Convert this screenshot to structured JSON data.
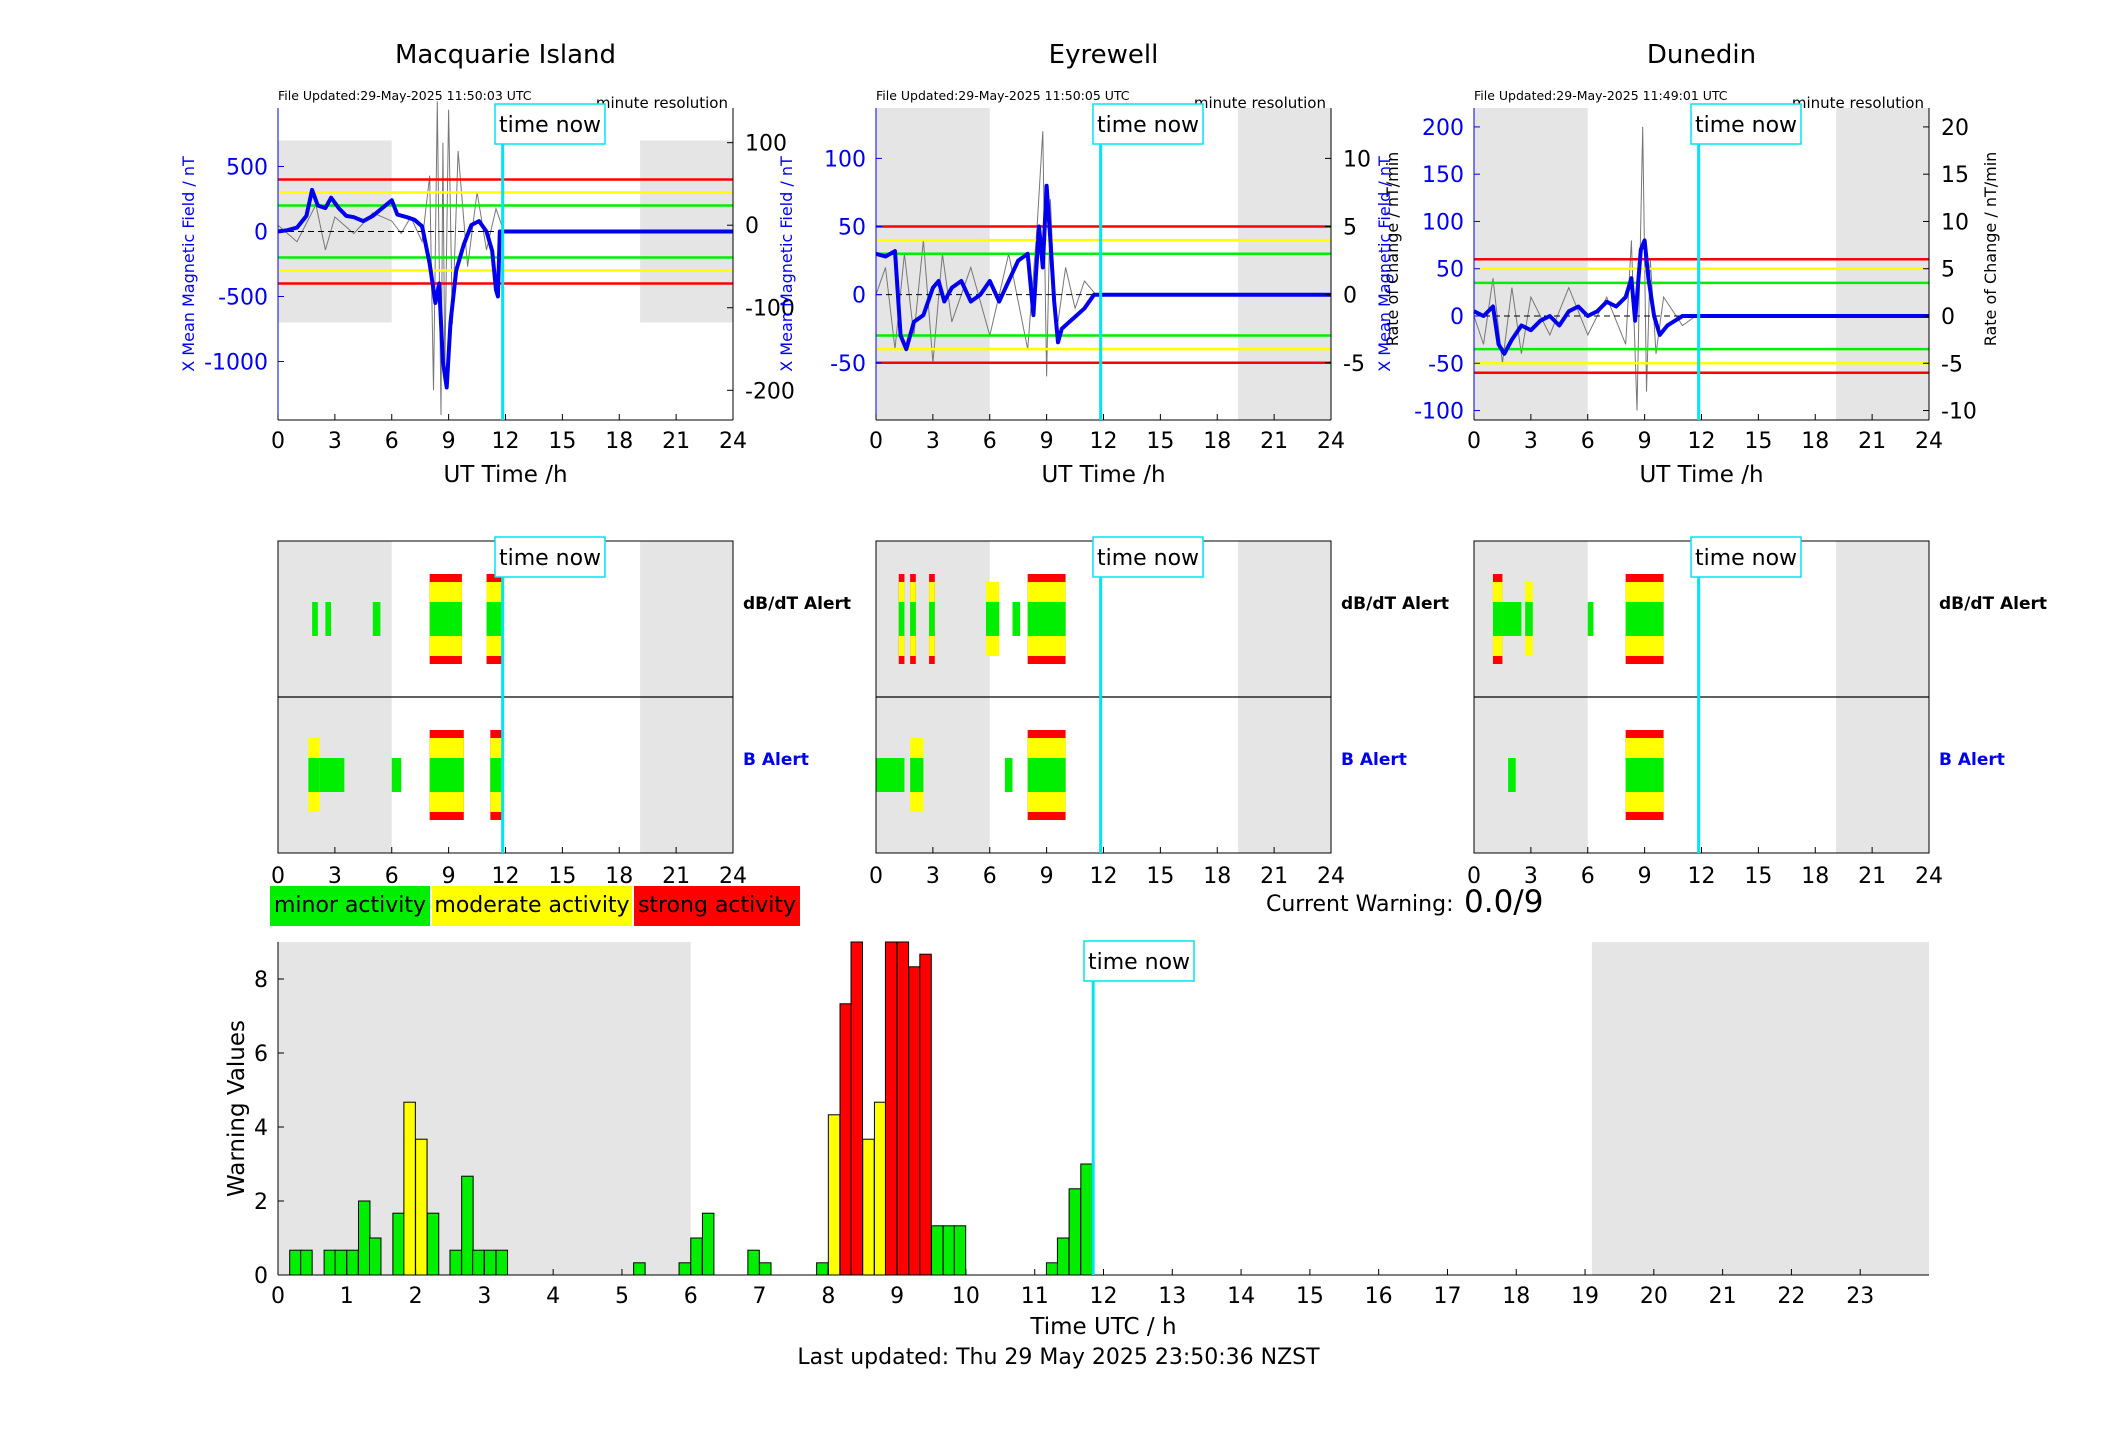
{
  "colors": {
    "minor": "#00ee00",
    "moderate": "#ffff00",
    "strong": "#ff0000",
    "field": "#0000ee",
    "now_line": "#00e5ee",
    "night": "#e5e5e5"
  },
  "now_label": "time now",
  "now_hour": 11.85,
  "file_resolution": "minute resolution",
  "alert_labels": {
    "dbdt": "dB/dT Alert",
    "b": "B Alert"
  },
  "legend": {
    "minor": "minor activity",
    "moderate": "moderate activity",
    "strong": "strong activity"
  },
  "current_warning": {
    "label": "Current Warning:",
    "value": "0.0/9"
  },
  "footer": "Last updated: Thu 29 May 2025 23:50:36 NZST",
  "chart_data": [
    {
      "type": "line",
      "title": "Macquarie Island",
      "file_updated": "File Updated:29-May-2025 11:50:03 UTC",
      "xlabel": "UT Time /h",
      "ylabel_left": "X Mean Magnetic Field / nT",
      "ylabel_right": "",
      "xlim": [
        0,
        24
      ],
      "xticks": [
        0,
        3,
        6,
        9,
        12,
        15,
        18,
        21,
        24
      ],
      "ylim_left": [
        -1450,
        950
      ],
      "yticks_left": [
        500,
        0,
        -500,
        -1000
      ],
      "ylim_right": [
        -236,
        142
      ],
      "yticks_right": [
        100,
        0,
        -100,
        -200
      ],
      "night": [
        [
          0,
          6,
          -700,
          700
        ],
        [
          19.1,
          24,
          -700,
          700
        ]
      ],
      "thresholds": {
        "green": 200,
        "yellow": 300,
        "red": 400
      },
      "field": [
        [
          0,
          0
        ],
        [
          0.5,
          10
        ],
        [
          1,
          30
        ],
        [
          1.5,
          120
        ],
        [
          1.8,
          320
        ],
        [
          2.1,
          200
        ],
        [
          2.5,
          180
        ],
        [
          2.8,
          260
        ],
        [
          3.2,
          180
        ],
        [
          3.6,
          120
        ],
        [
          4,
          110
        ],
        [
          4.5,
          80
        ],
        [
          5,
          120
        ],
        [
          5.5,
          180
        ],
        [
          6,
          240
        ],
        [
          6.3,
          130
        ],
        [
          6.8,
          110
        ],
        [
          7.2,
          90
        ],
        [
          7.6,
          40
        ],
        [
          8.0,
          -250
        ],
        [
          8.3,
          -550
        ],
        [
          8.5,
          -400
        ],
        [
          8.7,
          -1000
        ],
        [
          8.9,
          -1200
        ],
        [
          9.1,
          -700
        ],
        [
          9.4,
          -300
        ],
        [
          9.8,
          -100
        ],
        [
          10.2,
          50
        ],
        [
          10.6,
          80
        ],
        [
          11.0,
          0
        ],
        [
          11.3,
          -150
        ],
        [
          11.5,
          -450
        ],
        [
          11.6,
          -500
        ],
        [
          11.7,
          0
        ],
        [
          12,
          0
        ],
        [
          24,
          0
        ]
      ],
      "rate": [
        [
          0,
          0
        ],
        [
          1,
          -20
        ],
        [
          2,
          25
        ],
        [
          2.5,
          -30
        ],
        [
          3,
          10
        ],
        [
          4,
          -10
        ],
        [
          5,
          15
        ],
        [
          6,
          5
        ],
        [
          6.5,
          -10
        ],
        [
          7,
          10
        ],
        [
          7.6,
          -20
        ],
        [
          8,
          60
        ],
        [
          8.2,
          -200
        ],
        [
          8.4,
          150
        ],
        [
          8.6,
          -230
        ],
        [
          8.7,
          100
        ],
        [
          8.8,
          -180
        ],
        [
          9,
          140
        ],
        [
          9.2,
          -120
        ],
        [
          9.5,
          90
        ],
        [
          10,
          -50
        ],
        [
          10.5,
          40
        ],
        [
          11,
          -30
        ],
        [
          11.5,
          20
        ],
        [
          11.8,
          0
        ]
      ]
    },
    {
      "type": "line",
      "title": "Eyrewell",
      "file_updated": "File Updated:29-May-2025 11:50:05 UTC",
      "xlabel": "UT Time /h",
      "ylabel_left": "X Mean Magnetic Field / nT",
      "ylabel_right": "Rate of Change / nT/min",
      "xlim": [
        0,
        24
      ],
      "xticks": [
        0,
        3,
        6,
        9,
        12,
        15,
        18,
        21,
        24
      ],
      "ylim_left": [
        -92,
        137
      ],
      "yticks_left": [
        100,
        50,
        0,
        -50
      ],
      "ylim_right": [
        -9.2,
        13.7
      ],
      "yticks_right": [
        10,
        5,
        0,
        -5
      ],
      "night": [
        [
          0,
          6,
          -92,
          137
        ],
        [
          19.1,
          24,
          -92,
          137
        ]
      ],
      "thresholds": {
        "green": 30,
        "yellow": 40,
        "red": 50
      },
      "field": [
        [
          0,
          30
        ],
        [
          0.5,
          28
        ],
        [
          1,
          32
        ],
        [
          1.3,
          -30
        ],
        [
          1.6,
          -40
        ],
        [
          2,
          -20
        ],
        [
          2.5,
          -15
        ],
        [
          3,
          5
        ],
        [
          3.3,
          10
        ],
        [
          3.6,
          -5
        ],
        [
          4,
          5
        ],
        [
          4.5,
          10
        ],
        [
          5,
          -5
        ],
        [
          5.5,
          0
        ],
        [
          6,
          10
        ],
        [
          6.5,
          -5
        ],
        [
          7,
          10
        ],
        [
          7.5,
          25
        ],
        [
          8,
          30
        ],
        [
          8.3,
          -15
        ],
        [
          8.6,
          50
        ],
        [
          8.8,
          20
        ],
        [
          9,
          80
        ],
        [
          9.2,
          40
        ],
        [
          9.4,
          -5
        ],
        [
          9.6,
          -35
        ],
        [
          9.8,
          -25
        ],
        [
          10.2,
          -20
        ],
        [
          10.6,
          -15
        ],
        [
          11,
          -10
        ],
        [
          11.5,
          0
        ],
        [
          12,
          0
        ],
        [
          24,
          0
        ]
      ],
      "rate": [
        [
          0,
          0
        ],
        [
          0.5,
          2
        ],
        [
          1,
          -4
        ],
        [
          1.5,
          3
        ],
        [
          2,
          -3
        ],
        [
          2.5,
          4
        ],
        [
          3,
          -5
        ],
        [
          3.5,
          3
        ],
        [
          4,
          -2
        ],
        [
          5,
          2
        ],
        [
          6,
          -3
        ],
        [
          7,
          3
        ],
        [
          8,
          -4
        ],
        [
          8.5,
          5
        ],
        [
          8.8,
          12
        ],
        [
          9,
          -6
        ],
        [
          9.2,
          7
        ],
        [
          9.5,
          -3
        ],
        [
          10,
          2
        ],
        [
          10.5,
          -1
        ],
        [
          11,
          1
        ],
        [
          11.6,
          0
        ]
      ]
    },
    {
      "type": "line",
      "title": "Dunedin",
      "file_updated": "File Updated:29-May-2025 11:49:01 UTC",
      "xlabel": "UT Time /h",
      "ylabel_left": "X Mean Magnetic Field / nT",
      "ylabel_right": "Rate of Change / nT/min",
      "xlim": [
        0,
        24
      ],
      "xticks": [
        0,
        3,
        6,
        9,
        12,
        15,
        18,
        21,
        24
      ],
      "ylim_left": [
        -110,
        220
      ],
      "yticks_left": [
        200,
        150,
        100,
        50,
        0,
        -50,
        -100
      ],
      "ylim_right": [
        -11,
        22
      ],
      "yticks_right": [
        20,
        15,
        10,
        5,
        0,
        -5,
        -10
      ],
      "night": [
        [
          0,
          6,
          -110,
          220
        ],
        [
          19.1,
          24,
          -110,
          220
        ]
      ],
      "thresholds": {
        "green": 35,
        "yellow": 50,
        "red": 60
      },
      "field": [
        [
          0,
          5
        ],
        [
          0.5,
          0
        ],
        [
          1,
          10
        ],
        [
          1.3,
          -30
        ],
        [
          1.6,
          -40
        ],
        [
          2,
          -25
        ],
        [
          2.5,
          -10
        ],
        [
          3,
          -15
        ],
        [
          3.5,
          -5
        ],
        [
          4,
          0
        ],
        [
          4.5,
          -10
        ],
        [
          5,
          5
        ],
        [
          5.5,
          10
        ],
        [
          6,
          0
        ],
        [
          6.5,
          5
        ],
        [
          7,
          15
        ],
        [
          7.5,
          10
        ],
        [
          8,
          20
        ],
        [
          8.3,
          40
        ],
        [
          8.5,
          -5
        ],
        [
          8.8,
          70
        ],
        [
          9,
          80
        ],
        [
          9.2,
          40
        ],
        [
          9.5,
          0
        ],
        [
          9.8,
          -20
        ],
        [
          10.2,
          -10
        ],
        [
          10.6,
          -5
        ],
        [
          11,
          0
        ],
        [
          11.8,
          0
        ],
        [
          12,
          0
        ],
        [
          24,
          0
        ]
      ],
      "rate": [
        [
          0,
          0
        ],
        [
          0.5,
          -3
        ],
        [
          1,
          4
        ],
        [
          1.5,
          -5
        ],
        [
          2,
          3
        ],
        [
          2.5,
          -4
        ],
        [
          3,
          2
        ],
        [
          4,
          -2
        ],
        [
          5,
          3
        ],
        [
          6,
          -2
        ],
        [
          7,
          2
        ],
        [
          8,
          -3
        ],
        [
          8.3,
          8
        ],
        [
          8.6,
          -10
        ],
        [
          8.9,
          20
        ],
        [
          9.1,
          -8
        ],
        [
          9.3,
          6
        ],
        [
          9.6,
          -4
        ],
        [
          10,
          2
        ],
        [
          11,
          -1
        ],
        [
          11.7,
          0
        ]
      ]
    },
    {
      "type": "bar",
      "title": "",
      "xlabel": "Time UTC / h",
      "ylabel": "Warning Values",
      "xlim": [
        0,
        24
      ],
      "ylim": [
        0,
        9
      ],
      "xticks": [
        0,
        1,
        2,
        3,
        4,
        5,
        6,
        7,
        8,
        9,
        10,
        11,
        12,
        13,
        14,
        15,
        16,
        17,
        18,
        19,
        20,
        21,
        22,
        23
      ],
      "yticks": [
        0,
        2,
        4,
        6,
        8
      ],
      "night": [
        [
          0,
          6
        ],
        [
          19.1,
          24
        ]
      ],
      "bar_width_h": 0.1667,
      "bars": [
        [
          0.17,
          0.67,
          "g"
        ],
        [
          0.33,
          0.67,
          "g"
        ],
        [
          0.67,
          0.67,
          "g"
        ],
        [
          0.83,
          0.67,
          "g"
        ],
        [
          1.0,
          0.67,
          "g"
        ],
        [
          1.17,
          2.0,
          "g"
        ],
        [
          1.33,
          1.0,
          "g"
        ],
        [
          1.67,
          1.67,
          "g"
        ],
        [
          1.83,
          4.67,
          "y"
        ],
        [
          2.0,
          3.67,
          "y"
        ],
        [
          2.17,
          1.67,
          "g"
        ],
        [
          2.5,
          0.67,
          "g"
        ],
        [
          2.67,
          2.67,
          "g"
        ],
        [
          2.83,
          0.67,
          "g"
        ],
        [
          3.0,
          0.67,
          "g"
        ],
        [
          3.17,
          0.67,
          "g"
        ],
        [
          5.17,
          0.33,
          "g"
        ],
        [
          5.83,
          0.33,
          "g"
        ],
        [
          6.0,
          1.0,
          "g"
        ],
        [
          6.17,
          1.67,
          "g"
        ],
        [
          6.83,
          0.67,
          "g"
        ],
        [
          7.0,
          0.33,
          "g"
        ],
        [
          7.83,
          0.33,
          "g"
        ],
        [
          8.0,
          4.33,
          "y"
        ],
        [
          8.17,
          7.33,
          "r"
        ],
        [
          8.33,
          9.0,
          "r"
        ],
        [
          8.5,
          3.67,
          "y"
        ],
        [
          8.67,
          4.67,
          "y"
        ],
        [
          8.83,
          9.0,
          "r"
        ],
        [
          9.0,
          9.0,
          "r"
        ],
        [
          9.17,
          8.33,
          "r"
        ],
        [
          9.33,
          8.67,
          "r"
        ],
        [
          9.5,
          1.33,
          "g"
        ],
        [
          9.67,
          1.33,
          "g"
        ],
        [
          9.83,
          1.33,
          "g"
        ],
        [
          11.17,
          0.33,
          "g"
        ],
        [
          11.33,
          1.0,
          "g"
        ],
        [
          11.5,
          2.33,
          "g"
        ],
        [
          11.67,
          3.0,
          "g"
        ]
      ]
    }
  ],
  "alerts": [
    {
      "dbdt": [
        [
          1.8,
          2.1,
          "g"
        ],
        [
          2.5,
          2.8,
          "g"
        ],
        [
          5.0,
          5.4,
          "g"
        ],
        [
          8.0,
          9.7,
          "g",
          "y",
          "r"
        ],
        [
          11.0,
          11.8,
          "g",
          "y",
          "r"
        ]
      ],
      "b": [
        [
          1.6,
          2.2,
          "g",
          "y"
        ],
        [
          2.2,
          3.5,
          "g"
        ],
        [
          6.0,
          6.5,
          "g"
        ],
        [
          8.0,
          9.8,
          "g",
          "y",
          "r"
        ],
        [
          11.2,
          11.8,
          "g",
          "y",
          "r"
        ]
      ]
    },
    {
      "dbdt": [
        [
          1.2,
          1.5,
          "g",
          "y",
          "r"
        ],
        [
          1.8,
          2.1,
          "g",
          "y",
          "r"
        ],
        [
          2.8,
          3.1,
          "g",
          "y",
          "r"
        ],
        [
          5.8,
          6.5,
          "g",
          "y"
        ],
        [
          7.2,
          7.6,
          "g"
        ],
        [
          8.0,
          10.0,
          "g",
          "y",
          "r"
        ]
      ],
      "b": [
        [
          0,
          1.5,
          "g"
        ],
        [
          1.8,
          2.5,
          "g",
          "y"
        ],
        [
          6.8,
          7.2,
          "g"
        ],
        [
          8.0,
          10.0,
          "g",
          "y",
          "r"
        ]
      ]
    },
    {
      "dbdt": [
        [
          1.0,
          1.5,
          "g",
          "y",
          "r"
        ],
        [
          1.5,
          2.5,
          "g"
        ],
        [
          2.7,
          3.1,
          "g",
          "y"
        ],
        [
          6.0,
          6.3,
          "g"
        ],
        [
          8.0,
          10.0,
          "g",
          "y",
          "r"
        ]
      ],
      "b": [
        [
          1.8,
          2.2,
          "g"
        ],
        [
          8.0,
          10.0,
          "g",
          "y",
          "r"
        ]
      ]
    }
  ]
}
